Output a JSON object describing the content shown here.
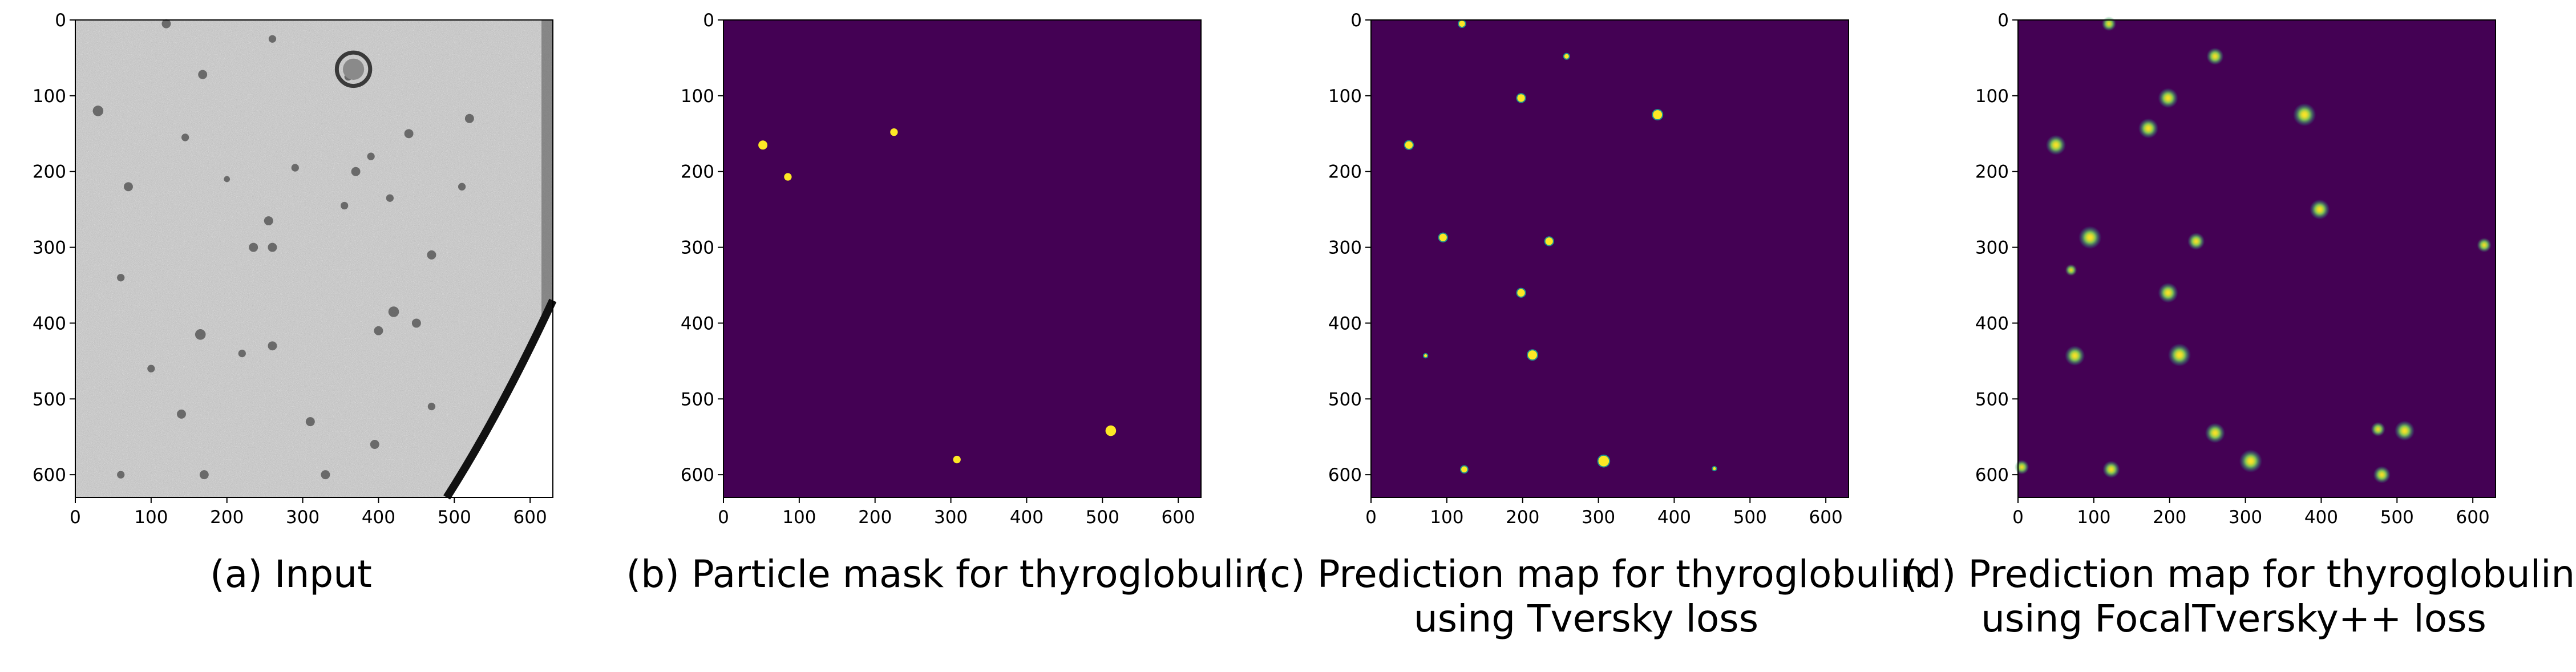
{
  "figure": {
    "panels": [
      {
        "id": "a",
        "caption": "(a) Input",
        "caption2": "",
        "content": "grayscale-tomogram",
        "x_ticks": [
          "0",
          "100",
          "200",
          "300",
          "400",
          "500",
          "600"
        ],
        "y_ticks": [
          "0",
          "100",
          "200",
          "300",
          "400",
          "500",
          "600"
        ],
        "particles": []
      },
      {
        "id": "b",
        "caption": "(b) Particle mask for thyroglobulin",
        "caption2": "",
        "content": "mask",
        "x_ticks": [
          "0",
          "100",
          "200",
          "300",
          "400",
          "500",
          "600"
        ],
        "y_ticks": [
          "0",
          "100",
          "200",
          "300",
          "400",
          "500",
          "600"
        ],
        "particles": [
          {
            "x": 52,
            "y": 165,
            "r": 6
          },
          {
            "x": 85,
            "y": 207,
            "r": 5
          },
          {
            "x": 225,
            "y": 148,
            "r": 5
          },
          {
            "x": 308,
            "y": 580,
            "r": 5
          },
          {
            "x": 511,
            "y": 542,
            "r": 7
          }
        ]
      },
      {
        "id": "c",
        "caption": "(c) Prediction map for thyroglobulin",
        "caption2": "using Tversky loss",
        "content": "prediction-sharp",
        "x_ticks": [
          "0",
          "100",
          "200",
          "300",
          "400",
          "500",
          "600"
        ],
        "y_ticks": [
          "0",
          "100",
          "200",
          "300",
          "400",
          "500",
          "600"
        ],
        "particles": [
          {
            "x": 120,
            "y": 5,
            "r": 4
          },
          {
            "x": 258,
            "y": 48,
            "r": 3
          },
          {
            "x": 198,
            "y": 103,
            "r": 5
          },
          {
            "x": 378,
            "y": 125,
            "r": 6
          },
          {
            "x": 50,
            "y": 165,
            "r": 5
          },
          {
            "x": 95,
            "y": 287,
            "r": 5
          },
          {
            "x": 235,
            "y": 292,
            "r": 5
          },
          {
            "x": 198,
            "y": 360,
            "r": 5
          },
          {
            "x": 72,
            "y": 443,
            "r": 2
          },
          {
            "x": 213,
            "y": 442,
            "r": 6
          },
          {
            "x": 123,
            "y": 593,
            "r": 4
          },
          {
            "x": 307,
            "y": 582,
            "r": 7
          },
          {
            "x": 453,
            "y": 592,
            "r": 2
          }
        ]
      },
      {
        "id": "d",
        "caption": "(d) Prediction map for thyroglobulin",
        "caption2": "using FocalTversky++ loss",
        "content": "prediction-blurry",
        "x_ticks": [
          "0",
          "100",
          "200",
          "300",
          "400",
          "500",
          "600"
        ],
        "y_ticks": [
          "0",
          "100",
          "200",
          "300",
          "400",
          "500",
          "600"
        ],
        "particles": [
          {
            "x": 120,
            "y": 5,
            "r": 5
          },
          {
            "x": 260,
            "y": 48,
            "r": 6
          },
          {
            "x": 198,
            "y": 103,
            "r": 7
          },
          {
            "x": 378,
            "y": 125,
            "r": 8
          },
          {
            "x": 172,
            "y": 143,
            "r": 7
          },
          {
            "x": 50,
            "y": 165,
            "r": 7
          },
          {
            "x": 95,
            "y": 287,
            "r": 8
          },
          {
            "x": 235,
            "y": 292,
            "r": 6
          },
          {
            "x": 398,
            "y": 250,
            "r": 7
          },
          {
            "x": 198,
            "y": 360,
            "r": 7
          },
          {
            "x": 70,
            "y": 330,
            "r": 4
          },
          {
            "x": 75,
            "y": 443,
            "r": 7
          },
          {
            "x": 213,
            "y": 442,
            "r": 8
          },
          {
            "x": 260,
            "y": 545,
            "r": 7
          },
          {
            "x": 307,
            "y": 582,
            "r": 8
          },
          {
            "x": 510,
            "y": 542,
            "r": 7
          },
          {
            "x": 475,
            "y": 540,
            "r": 5
          },
          {
            "x": 123,
            "y": 593,
            "r": 6
          },
          {
            "x": 480,
            "y": 600,
            "r": 6
          },
          {
            "x": 5,
            "y": 590,
            "r": 5
          },
          {
            "x": 615,
            "y": 297,
            "r": 5
          }
        ]
      }
    ]
  },
  "colors": {
    "background_mask": "#440154",
    "particle_bright": "#fde725",
    "particle_mid": "#21918c",
    "particle_glow": "#5ec962",
    "axis": "#000000"
  }
}
